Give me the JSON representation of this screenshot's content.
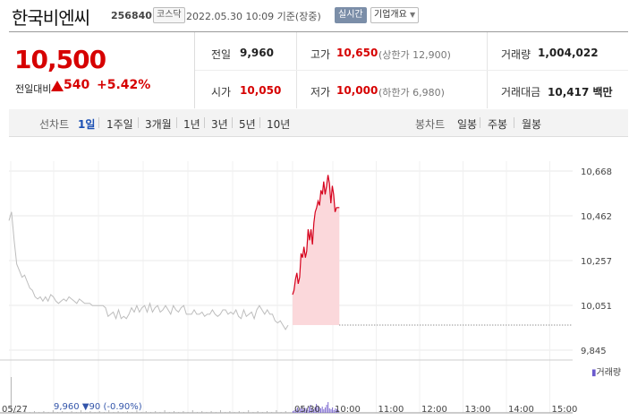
{
  "header": {
    "name": "한국비엔씨",
    "code": "256840",
    "market_tag": "코스닥",
    "datetime": "2022.05.30 10:09  기준(장중)",
    "live_tag": "실시간",
    "info_tag": "기업개요"
  },
  "price": {
    "current": "10,500",
    "prev_label": "전일대비",
    "change": "540",
    "change_pct": "+5.42%"
  },
  "stats": {
    "prev_close_label": "전일",
    "prev_close": "9,960",
    "high_label": "고가",
    "high": "10,650",
    "upper_limit": "(상한가 12,900)",
    "volume_label": "거래량",
    "volume": "1,004,022",
    "open_label": "시가",
    "open": "10,050",
    "low_label": "저가",
    "low": "10,000",
    "lower_limit": "(하한가 6,980)",
    "amount_label": "거래대금",
    "amount": "10,417 백만"
  },
  "tabs": {
    "line_label": "선차트",
    "line_periods": [
      "1일",
      "1주일",
      "3개월",
      "1년",
      "3년",
      "5년",
      "10년"
    ],
    "candle_label": "봉차트",
    "candle_periods": [
      "일봉",
      "주봉",
      "월봉"
    ]
  },
  "colors": {
    "up": "#d60000",
    "down": "#1a4fb3",
    "accent": "#7b8ea8"
  },
  "chart_data": {
    "type": "line",
    "y_ticks": [
      "10,668",
      "10,462",
      "10,257",
      "10,051",
      "9,845"
    ],
    "ylim": [
      9845,
      10668
    ],
    "x_ticks": [
      "05/27",
      "05/30",
      "10:00",
      "11:00",
      "12:00",
      "13:00",
      "14:00",
      "15:00"
    ],
    "prev_close": 9960,
    "prev_day_series": [
      10440,
      10480,
      10350,
      10240,
      10210,
      10180,
      10190,
      10160,
      10130,
      10120,
      10090,
      10080,
      10090,
      10070,
      10090,
      10070,
      10100,
      10090,
      10070,
      10060,
      10070,
      10080,
      10070,
      10090,
      10080,
      10070,
      10060,
      10080,
      10070,
      10060,
      10060,
      10060,
      10050,
      10050,
      10050,
      10050,
      10050,
      10040,
      10000,
      10010,
      10020,
      9990,
      10030,
      9990,
      10000,
      9990,
      10010,
      10040,
      10020,
      10050,
      10020,
      10040,
      10050,
      10020,
      10060,
      10020,
      10040,
      10050,
      10020,
      10030,
      10050,
      10030,
      10010,
      10050,
      10030,
      10020,
      10040,
      10050,
      10010,
      10010,
      10010,
      10030,
      10010,
      10010,
      10020,
      10000,
      10010,
      10010,
      10030,
      10010,
      10000,
      10010,
      10030,
      10030,
      10010,
      10020,
      10010,
      10030,
      10000,
      9990,
      10030,
      10000,
      10010,
      10020,
      9990,
      10030,
      10050,
      10030,
      10010,
      10030,
      10010,
      10010,
      9980,
      9970,
      9980,
      9960,
      9940,
      9960
    ],
    "today_series": [
      10100,
      10120,
      10170,
      10200,
      10150,
      10180,
      10290,
      10270,
      10320,
      10270,
      10300,
      10400,
      10350,
      10400,
      10330,
      10430,
      10480,
      10500,
      10530,
      10510,
      10580,
      10560,
      10620,
      10560,
      10600,
      10650,
      10610,
      10520,
      10600,
      10560,
      10480,
      10500,
      10500,
      10500
    ],
    "today_start": "09:00",
    "today_last": "10:09",
    "volume_label": "거래량",
    "last_prev_day": {
      "date": "05/27",
      "price": "9,960",
      "change": "90",
      "change_pct": "(-0.90%)"
    }
  }
}
